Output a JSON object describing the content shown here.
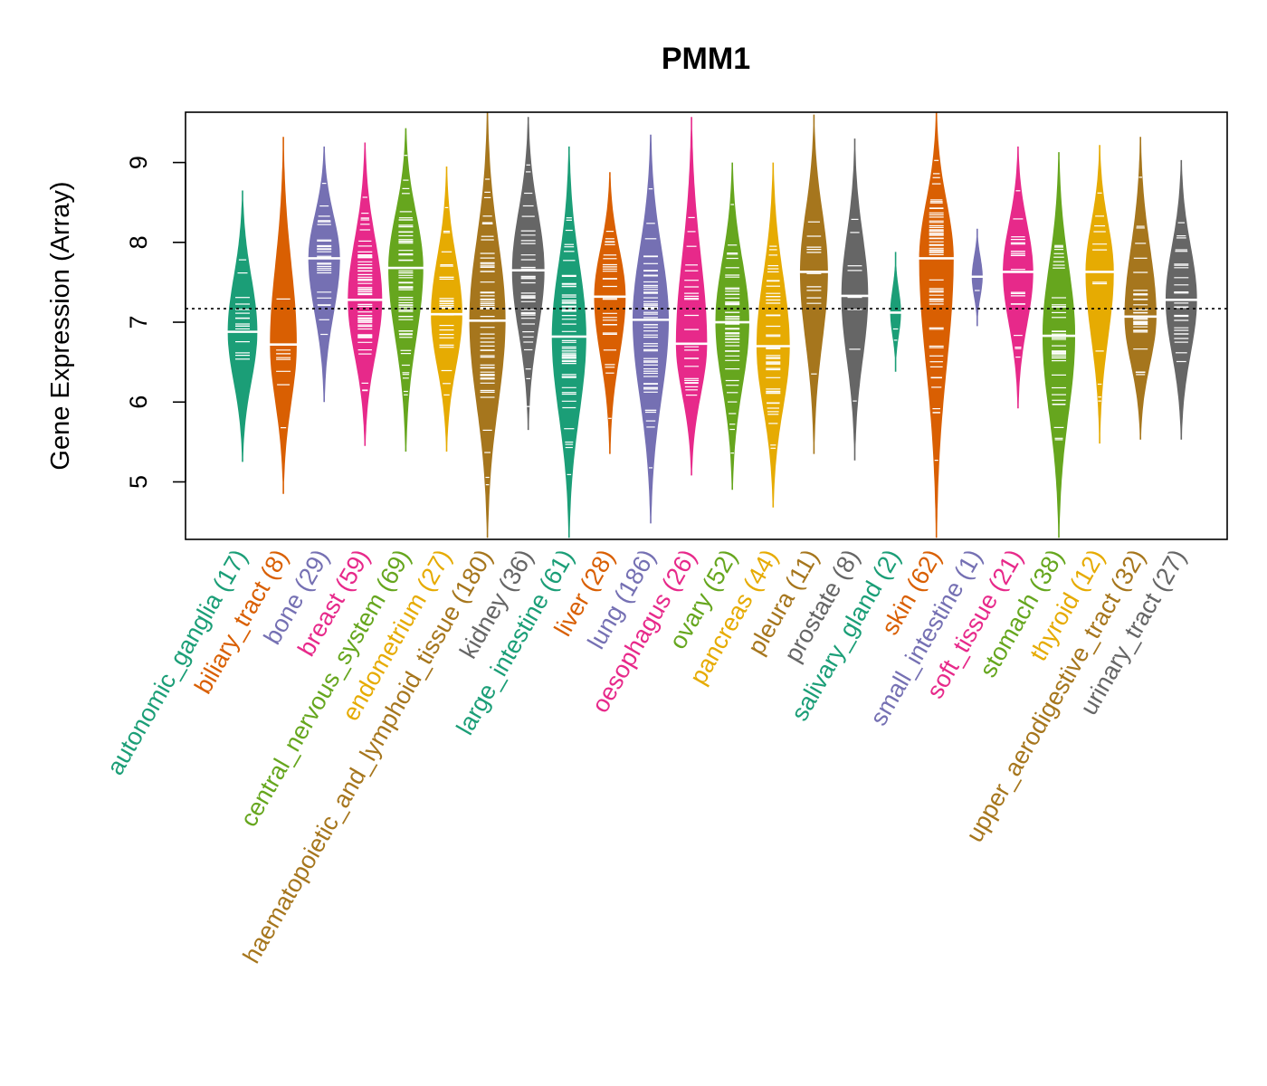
{
  "chart_data": {
    "type": "beanplot",
    "title": "PMM1",
    "xlabel": "",
    "ylabel": "Gene Expression (Array)",
    "ylim": [
      4.28,
      9.63
    ],
    "yticks": [
      5,
      6,
      7,
      8,
      9
    ],
    "overall_mean": 7.17,
    "colors": [
      "#1B9E77",
      "#D95F02",
      "#7570B3",
      "#E7298A",
      "#66A61E",
      "#E6AB02",
      "#A6761D",
      "#666666"
    ],
    "categories": [
      {
        "name": "autonomic_ganglia",
        "n": 17,
        "label": "autonomic_ganglia (17)",
        "median": 6.88,
        "min": 5.25,
        "max": 8.65,
        "color": "#1B9E77"
      },
      {
        "name": "biliary_tract",
        "n": 8,
        "label": "biliary_tract (8)",
        "median": 6.72,
        "min": 4.85,
        "max": 9.32,
        "color": "#D95F02"
      },
      {
        "name": "bone",
        "n": 29,
        "label": "bone (29)",
        "median": 7.8,
        "min": 6.0,
        "max": 9.2,
        "color": "#7570B3"
      },
      {
        "name": "breast",
        "n": 59,
        "label": "breast (59)",
        "median": 7.28,
        "min": 5.45,
        "max": 9.25,
        "color": "#E7298A"
      },
      {
        "name": "central_nervous_system",
        "n": 69,
        "label": "central_nervous_system (69)",
        "median": 7.68,
        "min": 5.38,
        "max": 9.43,
        "color": "#66A61E"
      },
      {
        "name": "endometrium",
        "n": 27,
        "label": "endometrium (27)",
        "median": 7.1,
        "min": 5.38,
        "max": 8.95,
        "color": "#E6AB02"
      },
      {
        "name": "haematopoietic_and_lymphoid_tissue",
        "n": 180,
        "label": "haematopoietic_and_lymphoid_tissue (180)",
        "median": 7.02,
        "min": 4.3,
        "max": 9.63,
        "color": "#A6761D"
      },
      {
        "name": "kidney",
        "n": 36,
        "label": "kidney (36)",
        "median": 7.65,
        "min": 5.65,
        "max": 9.57,
        "color": "#666666"
      },
      {
        "name": "large_intestine",
        "n": 61,
        "label": "large_intestine (61)",
        "median": 6.82,
        "min": 4.3,
        "max": 9.2,
        "color": "#1B9E77"
      },
      {
        "name": "liver",
        "n": 28,
        "label": "liver (28)",
        "median": 7.32,
        "min": 5.35,
        "max": 8.88,
        "color": "#D95F02"
      },
      {
        "name": "lung",
        "n": 186,
        "label": "lung (186)",
        "median": 7.03,
        "min": 4.48,
        "max": 9.35,
        "color": "#7570B3"
      },
      {
        "name": "oesophagus",
        "n": 26,
        "label": "oesophagus (26)",
        "median": 6.73,
        "min": 5.08,
        "max": 9.57,
        "color": "#E7298A"
      },
      {
        "name": "ovary",
        "n": 52,
        "label": "ovary (52)",
        "median": 7.0,
        "min": 4.9,
        "max": 9.0,
        "color": "#66A61E"
      },
      {
        "name": "pancreas",
        "n": 44,
        "label": "pancreas (44)",
        "median": 6.7,
        "min": 4.68,
        "max": 9.0,
        "color": "#E6AB02"
      },
      {
        "name": "pleura",
        "n": 11,
        "label": "pleura (11)",
        "median": 7.63,
        "min": 5.35,
        "max": 9.6,
        "color": "#A6761D"
      },
      {
        "name": "prostate",
        "n": 8,
        "label": "prostate (8)",
        "median": 7.33,
        "min": 5.27,
        "max": 9.3,
        "color": "#666666"
      },
      {
        "name": "salivary_gland",
        "n": 2,
        "label": "salivary_gland (2)",
        "median": 7.12,
        "min": 6.38,
        "max": 7.88,
        "color": "#1B9E77"
      },
      {
        "name": "skin",
        "n": 62,
        "label": "skin (62)",
        "median": 7.8,
        "min": 4.3,
        "max": 9.63,
        "color": "#D95F02"
      },
      {
        "name": "small_intestine",
        "n": 1,
        "label": "small_intestine (1)",
        "median": 7.57,
        "min": 6.95,
        "max": 8.17,
        "color": "#7570B3"
      },
      {
        "name": "soft_tissue",
        "n": 21,
        "label": "soft_tissue (21)",
        "median": 7.63,
        "min": 5.92,
        "max": 9.2,
        "color": "#E7298A"
      },
      {
        "name": "stomach",
        "n": 38,
        "label": "stomach (38)",
        "median": 6.83,
        "min": 4.3,
        "max": 9.13,
        "color": "#66A61E"
      },
      {
        "name": "thyroid",
        "n": 12,
        "label": "thyroid (12)",
        "median": 7.63,
        "min": 5.48,
        "max": 9.22,
        "color": "#E6AB02"
      },
      {
        "name": "upper_aerodigestive_tract",
        "n": 32,
        "label": "upper_aerodigestive_tract (32)",
        "median": 7.07,
        "min": 5.53,
        "max": 9.32,
        "color": "#A6761D"
      },
      {
        "name": "urinary_tract",
        "n": 27,
        "label": "urinary_tract (27)",
        "median": 7.28,
        "min": 5.53,
        "max": 9.03,
        "color": "#666666"
      }
    ]
  }
}
